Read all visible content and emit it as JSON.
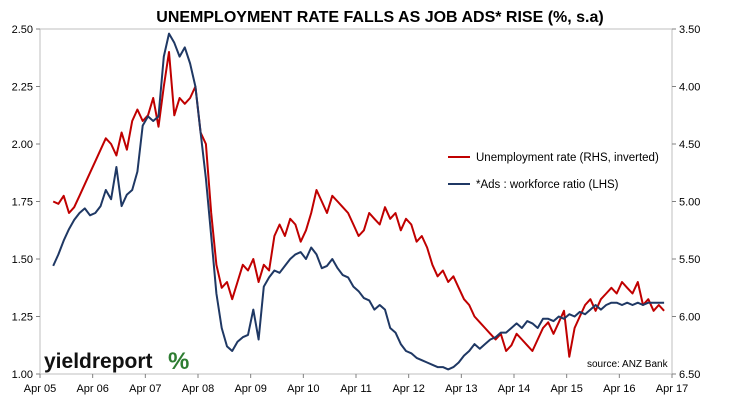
{
  "chart_data": {
    "type": "line",
    "title": "UNEMPLOYMENT RATE FALLS AS JOB ADS* RISE  (%, s.a)",
    "x_tick_labels": [
      "Apr 05",
      "Apr 06",
      "Apr 07",
      "Apr 08",
      "Apr 09",
      "Apr 10",
      "Apr 11",
      "Apr 12",
      "Apr 13",
      "Apr 14",
      "Apr 15",
      "Apr 16",
      "Apr 17"
    ],
    "x_range": [
      2005.25,
      2017.25
    ],
    "y_left": {
      "ylim": [
        1.0,
        2.5
      ],
      "ticks": [
        "1.00",
        "1.25",
        "1.50",
        "1.75",
        "2.00",
        "2.25",
        "2.50"
      ]
    },
    "y_right": {
      "ylim": [
        3.5,
        6.5
      ],
      "inverted": true,
      "ticks": [
        "3.50",
        "4.00",
        "4.50",
        "5.00",
        "5.50",
        "6.00",
        "6.50"
      ]
    },
    "grid": false,
    "legend_placement": "right",
    "series": [
      {
        "name": "Unemployment rate (RHS, inverted)",
        "axis": "right",
        "color": "#c00000",
        "x": [
          2005.5,
          2005.6,
          2005.7,
          2005.8,
          2005.9,
          2006.0,
          2006.1,
          2006.2,
          2006.3,
          2006.4,
          2006.5,
          2006.6,
          2006.7,
          2006.8,
          2006.9,
          2007.0,
          2007.1,
          2007.2,
          2007.3,
          2007.4,
          2007.5,
          2007.6,
          2007.7,
          2007.8,
          2007.9,
          2008.0,
          2008.1,
          2008.2,
          2008.3,
          2008.4,
          2008.5,
          2008.6,
          2008.7,
          2008.8,
          2008.9,
          2009.0,
          2009.1,
          2009.2,
          2009.3,
          2009.4,
          2009.5,
          2009.6,
          2009.7,
          2009.8,
          2009.9,
          2010.0,
          2010.1,
          2010.2,
          2010.3,
          2010.4,
          2010.5,
          2010.6,
          2010.7,
          2010.8,
          2010.9,
          2011.0,
          2011.1,
          2011.2,
          2011.3,
          2011.4,
          2011.5,
          2011.6,
          2011.7,
          2011.8,
          2011.9,
          2012.0,
          2012.1,
          2012.2,
          2012.3,
          2012.4,
          2012.5,
          2012.6,
          2012.7,
          2012.8,
          2012.9,
          2013.0,
          2013.1,
          2013.2,
          2013.3,
          2013.4,
          2013.5,
          2013.6,
          2013.7,
          2013.8,
          2013.9,
          2014.0,
          2014.1,
          2014.2,
          2014.3,
          2014.4,
          2014.5,
          2014.6,
          2014.7,
          2014.8,
          2014.9,
          2015.0,
          2015.1,
          2015.2,
          2015.3,
          2015.4,
          2015.5,
          2015.6,
          2015.7,
          2015.8,
          2015.9,
          2016.0,
          2016.1,
          2016.2,
          2016.3,
          2016.4,
          2016.5,
          2016.6,
          2016.7,
          2016.8,
          2016.9,
          2017.0,
          2017.1
        ],
        "values": [
          5.0,
          5.02,
          4.95,
          5.1,
          5.05,
          4.95,
          4.85,
          4.75,
          4.65,
          4.55,
          4.45,
          4.5,
          4.6,
          4.4,
          4.55,
          4.3,
          4.2,
          4.3,
          4.25,
          4.1,
          4.35,
          4.0,
          3.7,
          4.25,
          4.1,
          4.15,
          4.1,
          4.0,
          4.4,
          4.5,
          5.1,
          5.55,
          5.75,
          5.7,
          5.85,
          5.7,
          5.55,
          5.6,
          5.5,
          5.7,
          5.55,
          5.6,
          5.3,
          5.2,
          5.3,
          5.15,
          5.2,
          5.35,
          5.25,
          5.1,
          4.9,
          5.0,
          5.1,
          4.95,
          5.0,
          5.05,
          5.1,
          5.2,
          5.3,
          5.25,
          5.1,
          5.15,
          5.2,
          5.05,
          5.15,
          5.1,
          5.25,
          5.15,
          5.2,
          5.35,
          5.3,
          5.4,
          5.55,
          5.65,
          5.6,
          5.7,
          5.65,
          5.75,
          5.85,
          5.9,
          6.0,
          6.05,
          6.1,
          6.15,
          6.2,
          6.15,
          6.3,
          6.25,
          6.15,
          6.2,
          6.25,
          6.3,
          6.2,
          6.1,
          6.05,
          6.15,
          6.05,
          5.95,
          6.35,
          6.1,
          6.0,
          5.9,
          5.85,
          5.95,
          5.85,
          5.8,
          5.75,
          5.8,
          5.7,
          5.75,
          5.8,
          5.7,
          5.9,
          5.85,
          5.95,
          5.9,
          5.95
        ]
      },
      {
        "name": "*Ads : workforce ratio (LHS)",
        "axis": "left",
        "color": "#1f3864",
        "x": [
          2005.5,
          2005.6,
          2005.7,
          2005.8,
          2005.9,
          2006.0,
          2006.1,
          2006.2,
          2006.3,
          2006.4,
          2006.5,
          2006.6,
          2006.7,
          2006.8,
          2006.9,
          2007.0,
          2007.1,
          2007.2,
          2007.3,
          2007.4,
          2007.5,
          2007.6,
          2007.7,
          2007.8,
          2007.9,
          2008.0,
          2008.1,
          2008.2,
          2008.3,
          2008.4,
          2008.5,
          2008.6,
          2008.7,
          2008.8,
          2008.9,
          2009.0,
          2009.1,
          2009.2,
          2009.3,
          2009.4,
          2009.5,
          2009.6,
          2009.7,
          2009.8,
          2009.9,
          2010.0,
          2010.1,
          2010.2,
          2010.3,
          2010.4,
          2010.5,
          2010.6,
          2010.7,
          2010.8,
          2010.9,
          2011.0,
          2011.1,
          2011.2,
          2011.3,
          2011.4,
          2011.5,
          2011.6,
          2011.7,
          2011.8,
          2011.9,
          2012.0,
          2012.1,
          2012.2,
          2012.3,
          2012.4,
          2012.5,
          2012.6,
          2012.7,
          2012.8,
          2012.9,
          2013.0,
          2013.1,
          2013.2,
          2013.3,
          2013.4,
          2013.5,
          2013.6,
          2013.7,
          2013.8,
          2013.9,
          2014.0,
          2014.1,
          2014.2,
          2014.3,
          2014.4,
          2014.5,
          2014.6,
          2014.7,
          2014.8,
          2014.9,
          2015.0,
          2015.1,
          2015.2,
          2015.3,
          2015.4,
          2015.5,
          2015.6,
          2015.7,
          2015.8,
          2015.9,
          2016.0,
          2016.1,
          2016.2,
          2016.3,
          2016.4,
          2016.5,
          2016.6,
          2016.7,
          2016.8,
          2016.9,
          2017.0,
          2017.1
        ],
        "values": [
          1.47,
          1.52,
          1.58,
          1.63,
          1.67,
          1.7,
          1.72,
          1.69,
          1.7,
          1.73,
          1.8,
          1.76,
          1.9,
          1.73,
          1.78,
          1.8,
          1.88,
          2.08,
          2.12,
          2.1,
          2.12,
          2.38,
          2.48,
          2.44,
          2.38,
          2.42,
          2.35,
          2.25,
          2.05,
          1.85,
          1.6,
          1.35,
          1.2,
          1.12,
          1.1,
          1.14,
          1.16,
          1.17,
          1.28,
          1.15,
          1.38,
          1.42,
          1.45,
          1.44,
          1.47,
          1.5,
          1.52,
          1.53,
          1.5,
          1.55,
          1.52,
          1.46,
          1.47,
          1.5,
          1.46,
          1.43,
          1.42,
          1.38,
          1.36,
          1.33,
          1.32,
          1.28,
          1.3,
          1.28,
          1.2,
          1.18,
          1.13,
          1.1,
          1.09,
          1.07,
          1.06,
          1.05,
          1.04,
          1.03,
          1.03,
          1.02,
          1.03,
          1.05,
          1.08,
          1.1,
          1.13,
          1.11,
          1.13,
          1.15,
          1.16,
          1.18,
          1.18,
          1.2,
          1.22,
          1.2,
          1.23,
          1.22,
          1.2,
          1.24,
          1.24,
          1.23,
          1.25,
          1.24,
          1.26,
          1.25,
          1.27,
          1.26,
          1.28,
          1.3,
          1.28,
          1.3,
          1.31,
          1.31,
          1.3,
          1.31,
          1.3,
          1.31,
          1.3,
          1.31,
          1.31,
          1.31,
          1.31
        ]
      }
    ]
  },
  "branding": {
    "logo_text": "yieldreport",
    "logo_symbol": "%"
  },
  "source": "source: ANZ Bank"
}
